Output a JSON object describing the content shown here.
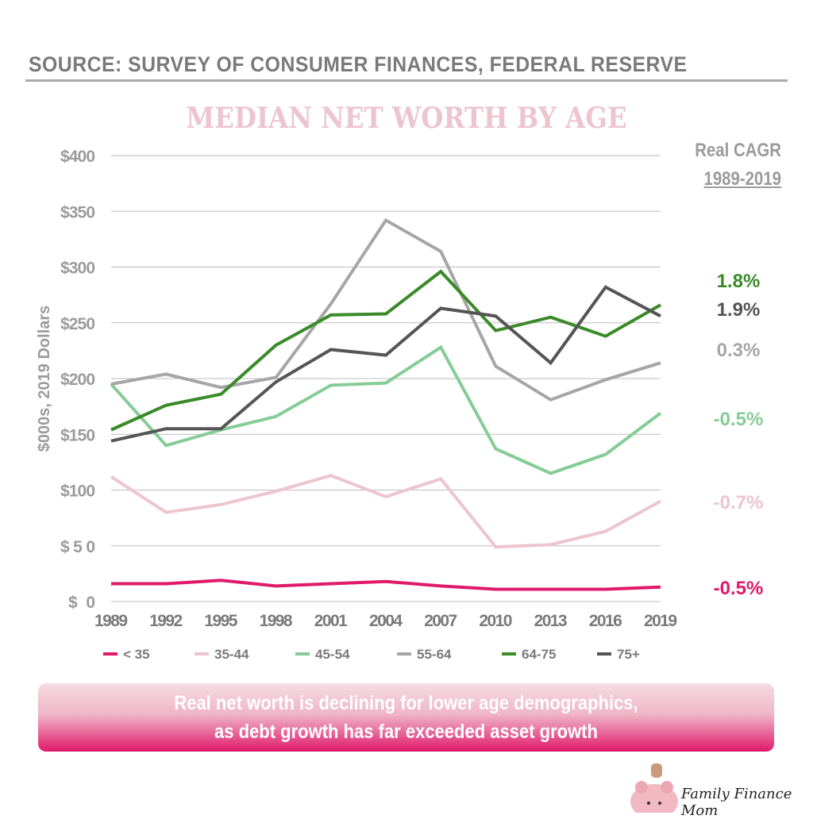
{
  "source": "SOURCE: SURVEY OF CONSUMER FINANCES, FEDERAL RESERVE",
  "cagr_header": {
    "line1": "Real CAGR",
    "line2": "1989-2019"
  },
  "banner": {
    "line1": "Real net worth is declining for lower age demographics,",
    "line2": "as debt growth has far exceeded asset growth"
  },
  "logo": {
    "text": "Family Finance Mom"
  },
  "chart_data": {
    "type": "line",
    "title": "MEDIAN NET WORTH BY AGE",
    "ylabel": "$000s, 2019 Dollars",
    "xlabel": "",
    "ylim": [
      0,
      400
    ],
    "yticks": [
      "$0",
      "$50",
      "$100",
      "$150",
      "$200",
      "$250",
      "$300",
      "$350",
      "$400"
    ],
    "ytick_values": [
      0,
      50,
      100,
      150,
      200,
      250,
      300,
      350,
      400
    ],
    "grid": true,
    "legend": "bottom",
    "x": [
      "1989",
      "1992",
      "1995",
      "1998",
      "2001",
      "2004",
      "2007",
      "2010",
      "2013",
      "2016",
      "2019"
    ],
    "series": [
      {
        "name": "< 35",
        "color": "#e0196a",
        "cagr": "-0.5%",
        "values": [
          16,
          16,
          19,
          14,
          16,
          18,
          14,
          11,
          11,
          11,
          13
        ]
      },
      {
        "name": "35-44",
        "color": "#ecc5cf",
        "cagr": "-0.7%",
        "values": [
          112,
          80,
          87,
          99,
          113,
          94,
          110,
          49,
          51,
          63,
          90
        ]
      },
      {
        "name": "45-54",
        "color": "#86cc96",
        "cagr": "-0.5%",
        "values": [
          195,
          140,
          154,
          166,
          194,
          196,
          228,
          137,
          115,
          132,
          169
        ]
      },
      {
        "name": "55-64",
        "color": "#a6a6a6",
        "cagr": "0.3%",
        "values": [
          195,
          204,
          192,
          201,
          267,
          342,
          314,
          211,
          181,
          199,
          214
        ]
      },
      {
        "name": "64-75",
        "color": "#3a8a2a",
        "cagr": "1.8%",
        "values": [
          154,
          176,
          186,
          230,
          257,
          258,
          296,
          243,
          255,
          238,
          266
        ]
      },
      {
        "name": "75+",
        "color": "#555555",
        "cagr": "1.9%",
        "values": [
          144,
          155,
          155,
          197,
          226,
          221,
          263,
          256,
          214,
          282,
          256
        ]
      }
    ]
  }
}
